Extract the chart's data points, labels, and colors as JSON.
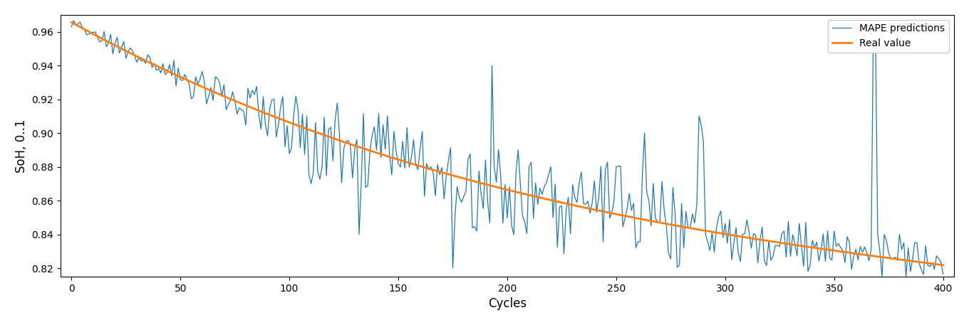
{
  "title": "",
  "xlabel": "Cycles",
  "ylabel": "SoH, 0..1",
  "xlim": [
    -5,
    405
  ],
  "ylim": [
    0.815,
    0.97
  ],
  "yticks": [
    0.82,
    0.84,
    0.86,
    0.88,
    0.9,
    0.92,
    0.94,
    0.96
  ],
  "xticks": [
    0,
    50,
    100,
    150,
    200,
    250,
    300,
    350,
    400
  ],
  "mape_color": "#1f77b4",
  "real_color": "#ff7f0e",
  "mape_label": "MAPE predictions",
  "real_label": "Real value",
  "figsize": [
    13.6,
    4.57
  ],
  "dpi": 100,
  "random_seed": 7,
  "n_cycles": 400
}
